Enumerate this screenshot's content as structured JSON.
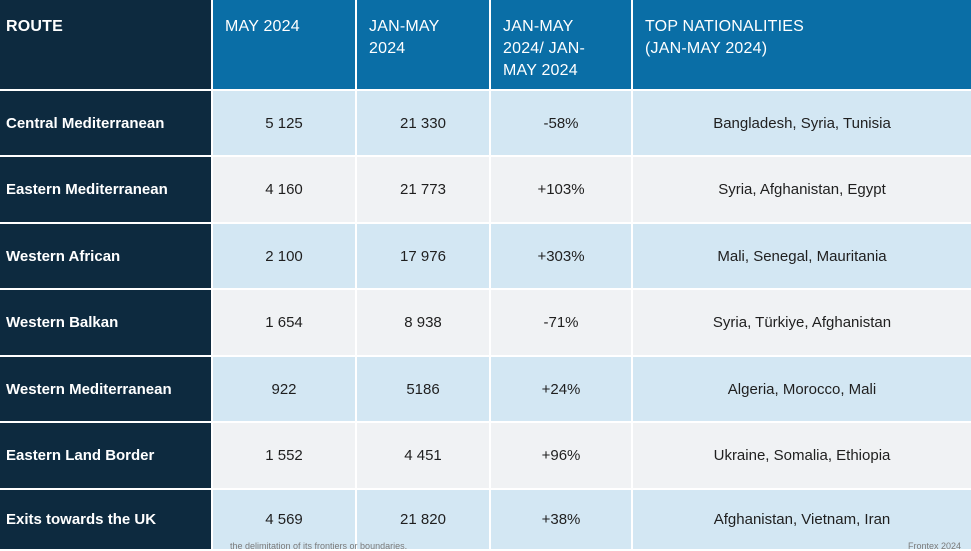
{
  "headers": {
    "route": "ROUTE",
    "may": "MAY 2024",
    "janmay": "JAN-MAY\n2024",
    "change": "JAN-MAY\n2024/ JAN-\nMAY 2024",
    "nationalities": "TOP NATIONALITIES\n(JAN-MAY 2024)"
  },
  "rows": [
    {
      "route": "Central Mediterranean",
      "may": "5 125",
      "janmay": "21 330",
      "change": "-58%",
      "nationalities": "Bangladesh, Syria, Tunisia"
    },
    {
      "route": "Eastern Mediterranean",
      "may": "4 160",
      "janmay": "21 773",
      "change": "+103%",
      "nationalities": "Syria, Afghanistan, Egypt"
    },
    {
      "route": "Western African",
      "may": "2 100",
      "janmay": "17 976",
      "change": "+303%",
      "nationalities": "Mali, Senegal, Mauritania"
    },
    {
      "route": "Western Balkan",
      "may": "1 654",
      "janmay": "8 938",
      "change": "-71%",
      "nationalities": "Syria, Türkiye, Afghanistan"
    },
    {
      "route": "Western Mediterranean",
      "may": "922",
      "janmay": "5186",
      "change": "+24%",
      "nationalities": "Algeria, Morocco, Mali"
    },
    {
      "route": "Eastern Land Border",
      "may": "1 552",
      "janmay": "4 451",
      "change": "+96%",
      "nationalities": "Ukraine, Somalia, Ethiopia"
    },
    {
      "route": "Exits towards the UK",
      "may": "4 569",
      "janmay": "21 820",
      "change": "+38%",
      "nationalities": "Afghanistan, Vietnam, Iran"
    }
  ],
  "footer": {
    "note": "the delimitation of its frontiers or boundaries.",
    "credit": "Frontex 2024"
  },
  "colors": {
    "header_blue": "#0a6ea6",
    "route_navy": "#0d2a3f",
    "row_light_blue": "#d3e7f3",
    "row_light_gray": "#f0f2f4"
  }
}
